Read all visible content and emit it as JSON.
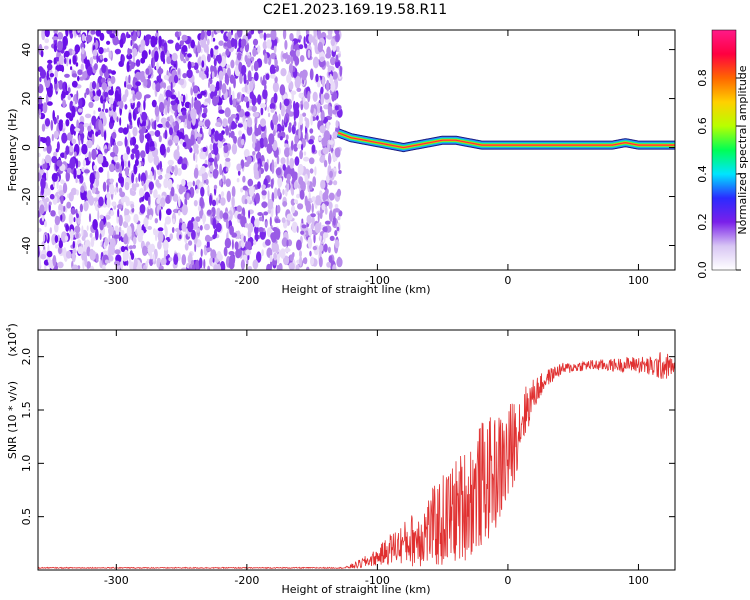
{
  "title": "C2E1.2023.169.19.58.R11",
  "chart_data": [
    {
      "type": "heatmap",
      "title": "C2E1.2023.169.19.58.R11",
      "xlabel": "Height of straight line (km)",
      "ylabel": "Frequency (Hz)",
      "xlim": [
        -360,
        128
      ],
      "ylim": [
        -50,
        48
      ],
      "xticks": [
        -300,
        -200,
        -100,
        0,
        100
      ],
      "xtick_labels": [
        "-300",
        "-200",
        "-100",
        "0",
        "100"
      ],
      "yticks": [
        -40,
        -20,
        0,
        20,
        40
      ],
      "ytick_labels": [
        "-40",
        "-20",
        "0",
        "20",
        "40"
      ],
      "noise_region_x": [
        -360,
        -128
      ],
      "doppler_trace": {
        "x": [
          -130,
          -120,
          -110,
          -100,
          -90,
          -80,
          -70,
          -60,
          -50,
          -40,
          -30,
          -20,
          -10,
          0,
          20,
          40,
          60,
          80,
          90,
          100,
          110,
          120,
          128
        ],
        "y": [
          6,
          4,
          3,
          2,
          1,
          0,
          1,
          2,
          3,
          3,
          2,
          1,
          1,
          1,
          1,
          1,
          1,
          1,
          2,
          1,
          1,
          1,
          1
        ]
      },
      "colorbar": {
        "label": "Normalized spectral amplitude",
        "range": [
          0,
          1
        ],
        "ticks": [
          0.0,
          0.2,
          0.4,
          0.6,
          0.8
        ],
        "tick_labels": [
          "0.0",
          "0.2",
          "0.4",
          "0.6",
          "0.8"
        ],
        "colors": [
          "#ffffff",
          "#d8c6f4",
          "#7a20ea",
          "#2b2bff",
          "#00e5ff",
          "#00ff55",
          "#b8ff00",
          "#ffd000",
          "#ff6600",
          "#ff0040",
          "#ff1a88"
        ]
      }
    },
    {
      "type": "line",
      "xlabel": "Height of straight line (km)",
      "ylabel": "SNR (10 * v/v)",
      "scale_label": "(x10",
      "scale_exp": "4",
      "scale_close": ")",
      "xlim": [
        -360,
        128
      ],
      "ylim": [
        0,
        2.25
      ],
      "xticks": [
        -300,
        -200,
        -100,
        0,
        100
      ],
      "xtick_labels": [
        "-300",
        "-200",
        "-100",
        "0",
        "100"
      ],
      "yticks": [
        0.5,
        1.0,
        1.5,
        2.0
      ],
      "ytick_labels": [
        "0.5",
        "1.0",
        "1.5",
        "2.0"
      ],
      "series": [
        {
          "name": "SNR",
          "color": "#e03030",
          "envelope": {
            "x": [
              -360,
              -200,
              -125,
              -115,
              -100,
              -90,
              -80,
              -70,
              -60,
              -50,
              -40,
              -30,
              -20,
              -10,
              0,
              10,
              20,
              30,
              40,
              50,
              60,
              80,
              100,
              110,
              120,
              128
            ],
            "mean": [
              0.02,
              0.02,
              0.02,
              0.05,
              0.12,
              0.2,
              0.25,
              0.3,
              0.38,
              0.45,
              0.55,
              0.65,
              0.8,
              0.9,
              1.05,
              1.4,
              1.65,
              1.8,
              1.88,
              1.9,
              1.92,
              1.92,
              1.93,
              1.9,
              1.92,
              1.9
            ],
            "amp": [
              0.005,
              0.005,
              0.005,
              0.04,
              0.08,
              0.15,
              0.2,
              0.28,
              0.35,
              0.45,
              0.5,
              0.55,
              0.6,
              0.55,
              0.5,
              0.3,
              0.15,
              0.08,
              0.06,
              0.05,
              0.05,
              0.06,
              0.08,
              0.1,
              0.15,
              0.05
            ]
          }
        }
      ]
    }
  ]
}
